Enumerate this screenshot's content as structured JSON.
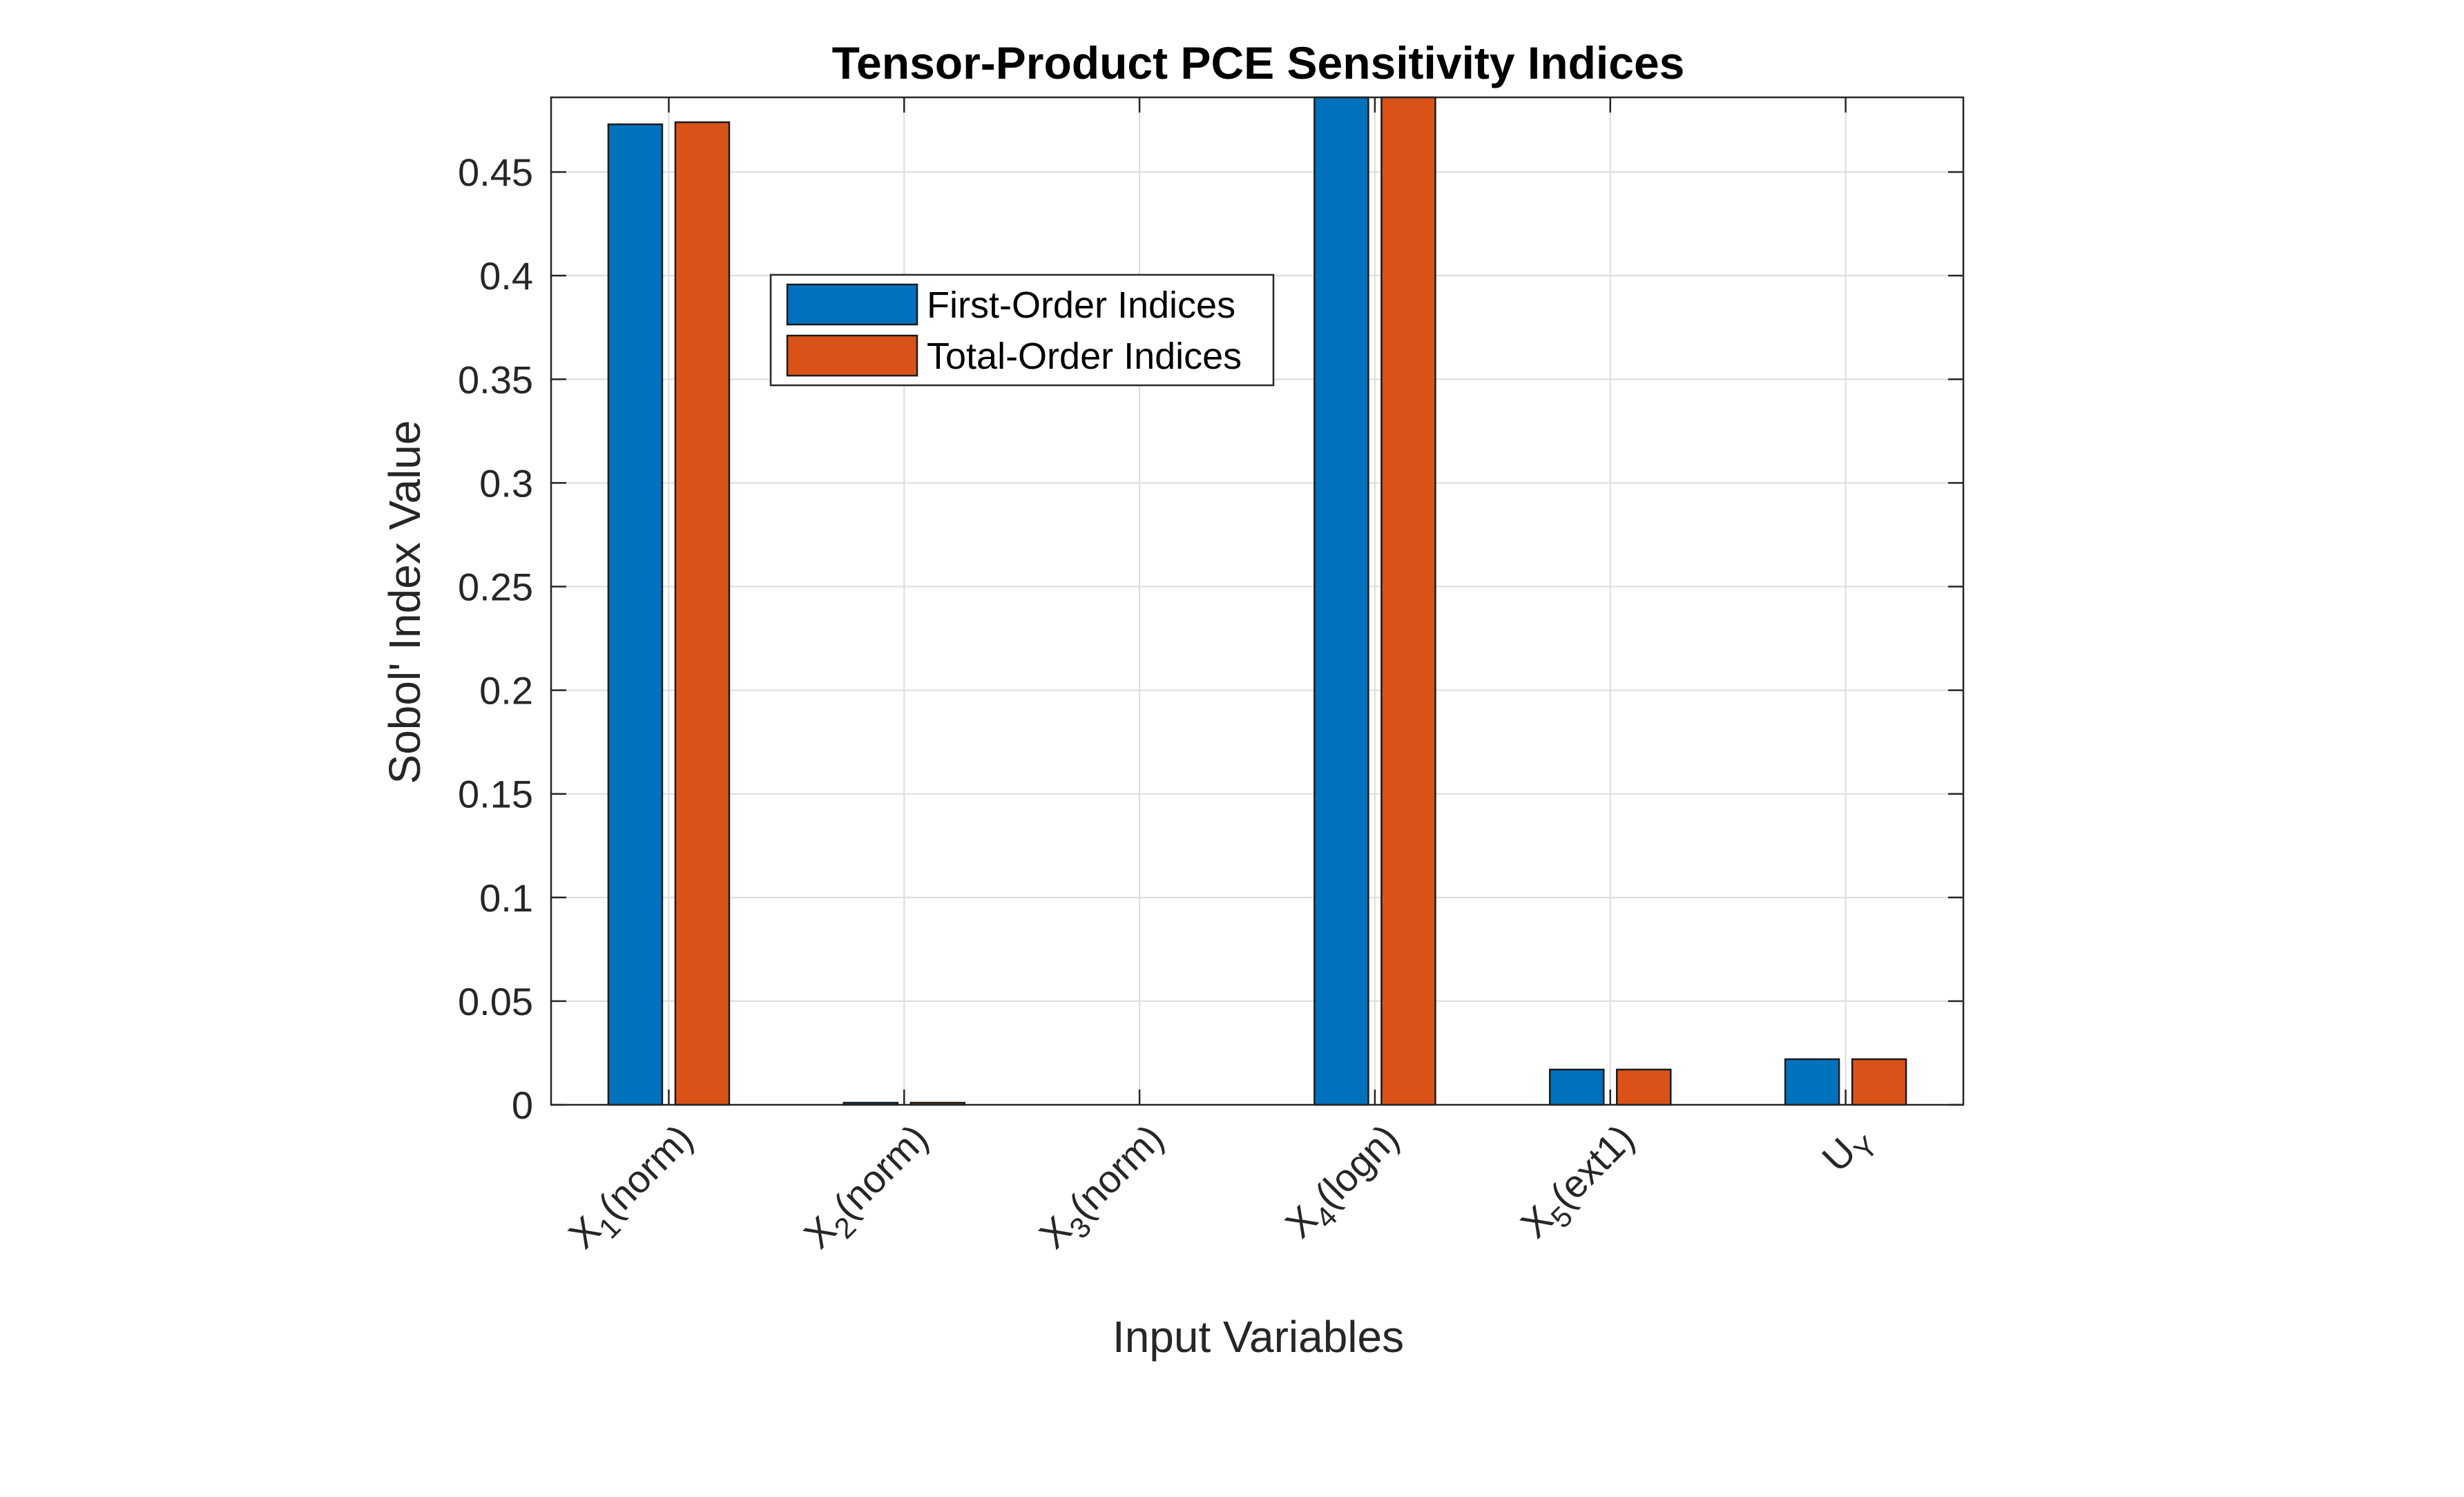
{
  "chart_data": {
    "type": "bar",
    "title": "Tensor-Product PCE Sensitivity Indices",
    "xlabel": "Input Variables",
    "ylabel": "Sobol' Index Value",
    "categories": [
      {
        "base": "X",
        "sub": "1",
        "suffix": "(norm)"
      },
      {
        "base": "X",
        "sub": "2",
        "suffix": "(norm)"
      },
      {
        "base": "X",
        "sub": "3",
        "suffix": "(norm)"
      },
      {
        "base": "X",
        "sub": "4",
        "suffix": "(logn)"
      },
      {
        "base": "X",
        "sub": "5",
        "suffix": "(ext1)"
      },
      {
        "base": "U",
        "sub": "Y",
        "suffix": ""
      }
    ],
    "series": [
      {
        "name": "First-Order Indices",
        "color": "#0072BD",
        "values": [
          0.473,
          0.001,
          0.0,
          0.486,
          0.017,
          0.022
        ]
      },
      {
        "name": "Total-Order Indices",
        "color": "#D95319",
        "values": [
          0.474,
          0.001,
          0.0,
          0.488,
          0.017,
          0.022
        ]
      }
    ],
    "ylim": [
      0,
      0.486
    ],
    "yticks": [
      0,
      0.05,
      0.1,
      0.15,
      0.2,
      0.25,
      0.3,
      0.35,
      0.4,
      0.45
    ],
    "ytick_labels": [
      "0",
      "0.05",
      "0.1",
      "0.15",
      "0.2",
      "0.25",
      "0.3",
      "0.35",
      "0.4",
      "0.45"
    ],
    "grid": true,
    "legend_position": "upper-left-inside"
  }
}
